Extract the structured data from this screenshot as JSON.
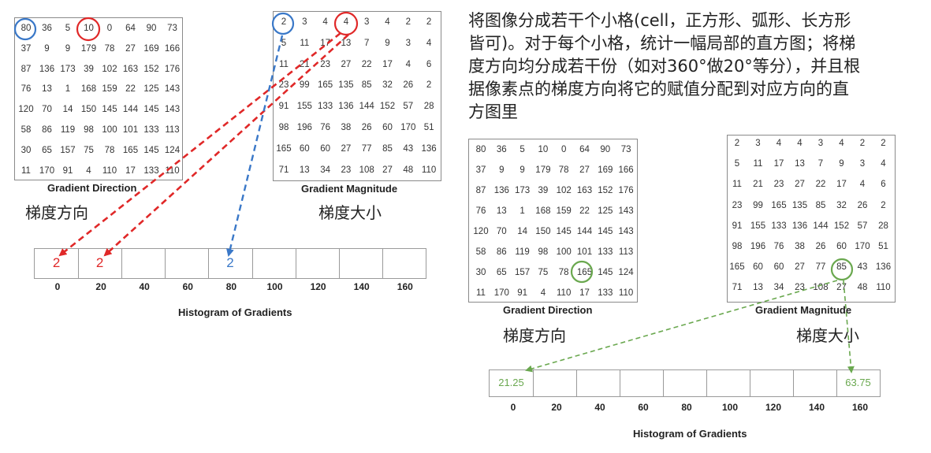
{
  "direction_matrix": [
    [
      "80",
      "36",
      "5",
      "10",
      "0",
      "64",
      "90",
      "73"
    ],
    [
      "37",
      "9",
      "9",
      "179",
      "78",
      "27",
      "169",
      "166"
    ],
    [
      "87",
      "136",
      "173",
      "39",
      "102",
      "163",
      "152",
      "176"
    ],
    [
      "76",
      "13",
      "1",
      "168",
      "159",
      "22",
      "125",
      "143"
    ],
    [
      "120",
      "70",
      "14",
      "150",
      "145",
      "144",
      "145",
      "143"
    ],
    [
      "58",
      "86",
      "119",
      "98",
      "100",
      "101",
      "133",
      "113"
    ],
    [
      "30",
      "65",
      "157",
      "75",
      "78",
      "165",
      "145",
      "124"
    ],
    [
      "11",
      "170",
      "91",
      "4",
      "110",
      "17",
      "133",
      "110"
    ]
  ],
  "magnitude_matrix": [
    [
      "2",
      "3",
      "4",
      "4",
      "3",
      "4",
      "2",
      "2"
    ],
    [
      "5",
      "11",
      "17",
      "13",
      "7",
      "9",
      "3",
      "4"
    ],
    [
      "11",
      "21",
      "23",
      "27",
      "22",
      "17",
      "4",
      "6"
    ],
    [
      "23",
      "99",
      "165",
      "135",
      "85",
      "32",
      "26",
      "2"
    ],
    [
      "91",
      "155",
      "133",
      "136",
      "144",
      "152",
      "57",
      "28"
    ],
    [
      "98",
      "196",
      "76",
      "38",
      "26",
      "60",
      "170",
      "51"
    ],
    [
      "165",
      "60",
      "60",
      "27",
      "77",
      "85",
      "43",
      "136"
    ],
    [
      "71",
      "13",
      "34",
      "23",
      "108",
      "27",
      "48",
      "110"
    ]
  ],
  "labels": {
    "gradient_direction": "Gradient Direction",
    "gradient_magnitude": "Gradient Magnitude",
    "direction_cn": "梯度方向",
    "magnitude_cn": "梯度大小",
    "histogram_title": "Histogram of Gradients"
  },
  "histogram_bins": [
    "0",
    "20",
    "40",
    "60",
    "80",
    "100",
    "120",
    "140",
    "160"
  ],
  "left_histogram_values": [
    "2",
    "2",
    "",
    "",
    "2",
    "",
    "",
    "",
    ""
  ],
  "right_histogram_values": [
    "21.25",
    "",
    "",
    "",
    "",
    "",
    "",
    "",
    "63.75"
  ],
  "description_lines": [
    "将图像分成若干个小格(cell，正方形、弧形、长方形",
    "皆可)。对于每个小格，统计一幅局部的直方图；将梯",
    "度方向均分成若干份（如对360°做20°等分），并且根",
    "据像素点的梯度方向将它的赋值分配到对应方向的直",
    "方图里"
  ],
  "colors": {
    "red": "#e02828",
    "blue": "#3a78c8",
    "green": "#6aa84f",
    "border": "#8a8a8a"
  }
}
